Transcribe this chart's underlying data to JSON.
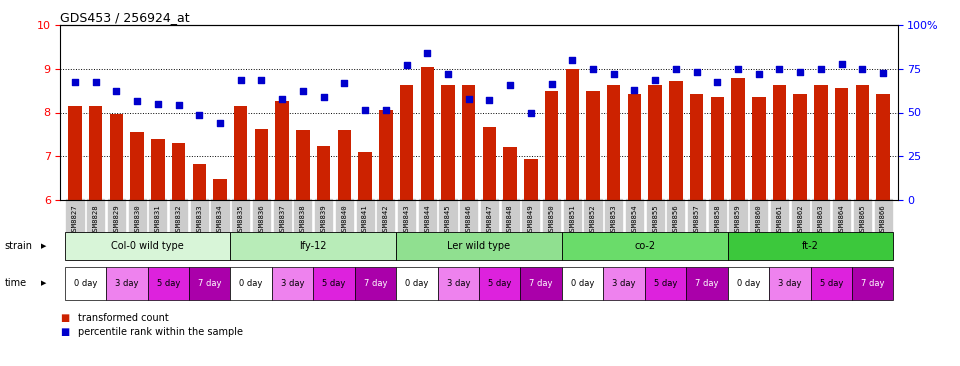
{
  "title": "GDS453 / 256924_at",
  "samples": [
    "GSM8827",
    "GSM8828",
    "GSM8829",
    "GSM8830",
    "GSM8831",
    "GSM8832",
    "GSM8833",
    "GSM8834",
    "GSM8835",
    "GSM8836",
    "GSM8837",
    "GSM8838",
    "GSM8839",
    "GSM8840",
    "GSM8841",
    "GSM8842",
    "GSM8843",
    "GSM8844",
    "GSM8845",
    "GSM8846",
    "GSM8847",
    "GSM8848",
    "GSM8849",
    "GSM8850",
    "GSM8851",
    "GSM8852",
    "GSM8853",
    "GSM8854",
    "GSM8855",
    "GSM8856",
    "GSM8857",
    "GSM8858",
    "GSM8859",
    "GSM8860",
    "GSM8861",
    "GSM8862",
    "GSM8863",
    "GSM8864",
    "GSM8865",
    "GSM8866"
  ],
  "bar_values": [
    8.15,
    8.15,
    7.97,
    7.55,
    7.4,
    7.3,
    6.83,
    6.48,
    8.15,
    7.62,
    8.27,
    7.61,
    7.24,
    7.61,
    7.1,
    8.05,
    8.63,
    9.05,
    8.63,
    8.63,
    7.68,
    7.22,
    6.93,
    8.48,
    9.0,
    8.5,
    8.63,
    8.42,
    8.63,
    8.72,
    8.42,
    8.35,
    8.78,
    8.35,
    8.63,
    8.42,
    8.63,
    8.55,
    8.63,
    8.42
  ],
  "dot_values": [
    8.7,
    8.7,
    8.5,
    8.27,
    8.2,
    8.17,
    7.95,
    7.77,
    8.75,
    8.74,
    8.3,
    8.5,
    8.35,
    8.67,
    8.05,
    8.05,
    9.08,
    9.37,
    8.89,
    8.3,
    8.28,
    8.63,
    8.0,
    8.65,
    9.2,
    9.0,
    8.89,
    8.52,
    8.75,
    9.0,
    8.92,
    8.7,
    9.0,
    8.87,
    9.0,
    8.92,
    9.0,
    9.1,
    9.0,
    8.9
  ],
  "ylim": [
    6,
    10
  ],
  "yticks": [
    6,
    7,
    8,
    9,
    10
  ],
  "ytick_labels_right": [
    "0",
    "25",
    "50",
    "75",
    "100%"
  ],
  "strain_labels": [
    "Col-0 wild type",
    "lfy-12",
    "Ler wild type",
    "co-2",
    "ft-2"
  ],
  "strain_ranges": [
    [
      0,
      8
    ],
    [
      8,
      16
    ],
    [
      16,
      24
    ],
    [
      24,
      32
    ],
    [
      32,
      40
    ]
  ],
  "strain_colors": [
    "#d8f5d8",
    "#b8ecb8",
    "#90e090",
    "#6adc6a",
    "#3cc83c"
  ],
  "time_label_list": [
    "0 day",
    "3 day",
    "5 day",
    "7 day"
  ],
  "time_colors": [
    "#ffffff",
    "#ee82ee",
    "#dd22dd",
    "#aa00aa"
  ],
  "bar_color": "#cc2200",
  "dot_color": "#0000cc",
  "legend_bar_label": "transformed count",
  "legend_dot_label": "percentile rank within the sample"
}
